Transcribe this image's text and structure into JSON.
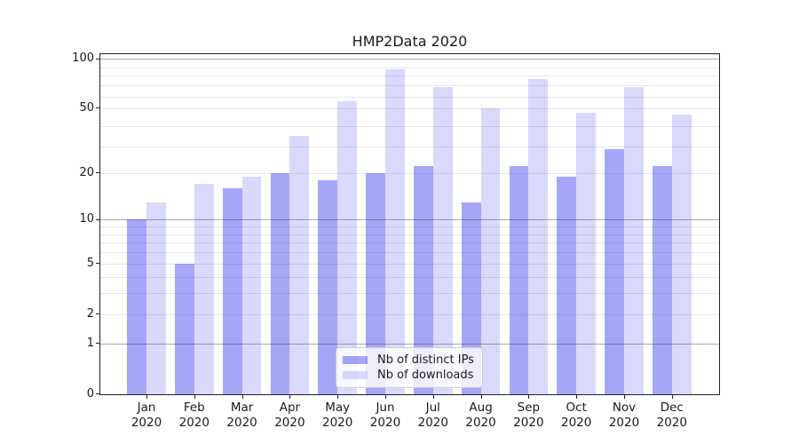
{
  "chart_data": {
    "type": "bar",
    "title": "HMP2Data 2020",
    "categories": [
      "Jan",
      "Feb",
      "Mar",
      "Apr",
      "May",
      "Jun",
      "Jul",
      "Aug",
      "Sep",
      "Oct",
      "Nov",
      "Dec"
    ],
    "year": "2020",
    "series": [
      {
        "name": "Nb of distinct IPs",
        "color": "rgba(0,0,238,0.35)",
        "values": [
          10,
          5,
          16,
          20,
          18,
          20,
          22,
          13,
          22,
          19,
          28,
          22
        ]
      },
      {
        "name": "Nb of downloads",
        "color": "rgba(0,0,238,0.15)",
        "values": [
          13,
          17,
          19,
          34,
          55,
          86,
          67,
          50,
          75,
          47,
          67,
          46
        ]
      }
    ],
    "y_scale": "log10(1+y)",
    "ylim": [
      0,
      110
    ],
    "y_ticks": [
      0,
      1,
      2,
      5,
      10,
      20,
      50,
      100
    ],
    "major_gridlines": [
      1,
      10,
      100
    ],
    "minor_gridlines": [
      2,
      3,
      4,
      5,
      6,
      7,
      8,
      9,
      20,
      29,
      39,
      50,
      59,
      69,
      79,
      89
    ],
    "grid": true,
    "legend_position": "lower center",
    "colors": {
      "major_grid": "#ababab",
      "minor_grid": "#e6e6e6",
      "spine": "#222222",
      "text": "#1a1a1a"
    }
  }
}
